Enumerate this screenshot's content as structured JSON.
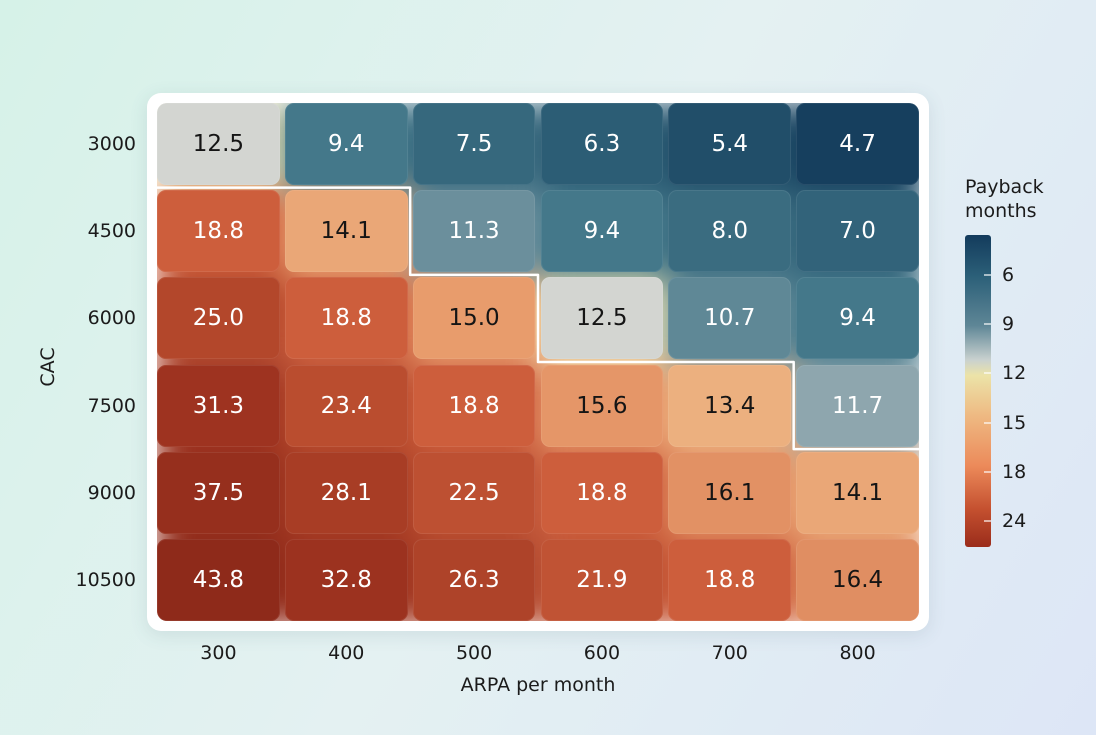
{
  "chart_data": {
    "type": "heatmap",
    "xlabel": "ARPA per month",
    "ylabel": "CAC",
    "x_categories": [
      "300",
      "400",
      "500",
      "600",
      "700",
      "800"
    ],
    "y_categories": [
      "3000",
      "4500",
      "6000",
      "7500",
      "9000",
      "10500"
    ],
    "values": [
      [
        12.5,
        9.4,
        7.5,
        6.3,
        5.4,
        4.7
      ],
      [
        18.8,
        14.1,
        11.3,
        9.4,
        8.0,
        7.0
      ],
      [
        25.0,
        18.8,
        15.0,
        12.5,
        10.7,
        9.4
      ],
      [
        31.3,
        23.4,
        18.8,
        15.6,
        13.4,
        11.7
      ],
      [
        37.5,
        28.1,
        22.5,
        18.8,
        16.1,
        14.1
      ],
      [
        43.8,
        32.8,
        26.3,
        21.9,
        18.8,
        16.4
      ]
    ],
    "value_labels": [
      [
        "12.5",
        "9.4",
        "7.5",
        "6.3",
        "5.4",
        "4.7"
      ],
      [
        "18.8",
        "14.1",
        "11.3",
        "9.4",
        "8.0",
        "7.0"
      ],
      [
        "25.0",
        "18.8",
        "15.0",
        "12.5",
        "10.7",
        "9.4"
      ],
      [
        "31.3",
        "23.4",
        "18.8",
        "15.6",
        "13.4",
        "11.7"
      ],
      [
        "37.5",
        "28.1",
        "22.5",
        "18.8",
        "16.1",
        "14.1"
      ],
      [
        "43.8",
        "32.8",
        "26.3",
        "21.9",
        "18.8",
        "16.4"
      ]
    ],
    "colorbar": {
      "title_line1": "Payback",
      "title_line2": "months",
      "ticks": [
        "6",
        "9",
        "12",
        "15",
        "18",
        "24"
      ]
    },
    "contour_threshold": 12.5,
    "colorscale": "diverging blue (short payback) to red (long payback)",
    "colors": {
      "low": "#133b5c",
      "mid": "#d4d6d2",
      "high": "#8e2a1a",
      "contour": "#ffffff"
    }
  }
}
